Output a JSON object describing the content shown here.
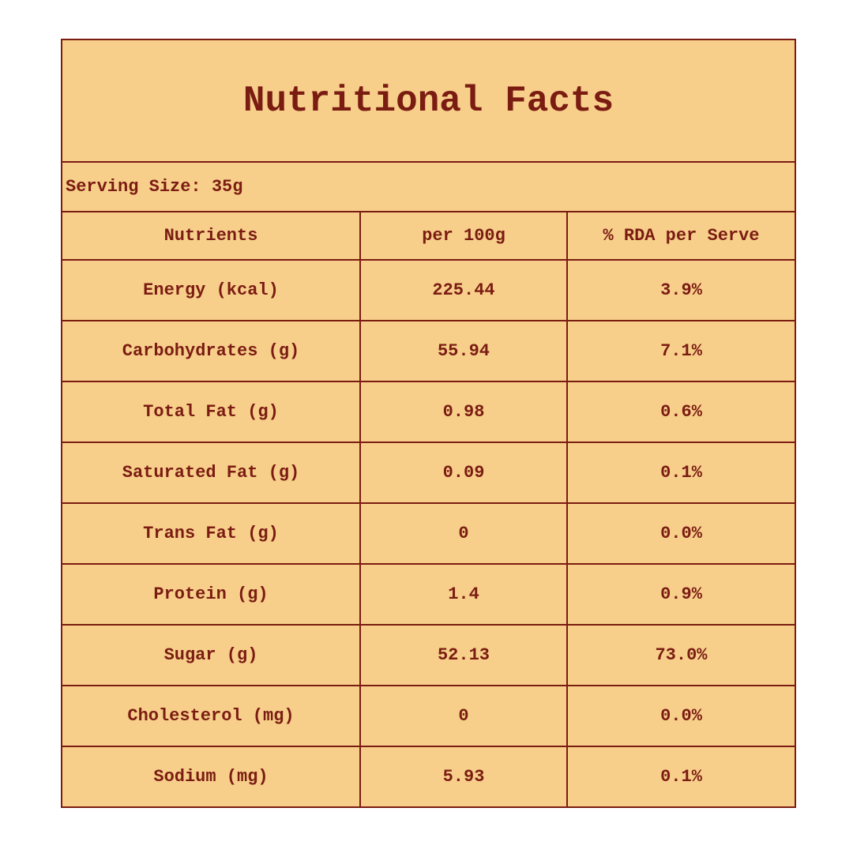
{
  "title": "Nutritional Facts",
  "serving_size": "Serving Size: 35g",
  "table": {
    "header": [
      "Nutrients",
      "per 100g",
      "% RDA per Serve"
    ],
    "rows": [
      [
        "Energy (kcal)",
        "225.44",
        "3.9%"
      ],
      [
        "Carbohydrates (g)",
        "55.94",
        "7.1%"
      ],
      [
        "Total Fat (g)",
        "0.98",
        "0.6%"
      ],
      [
        "Saturated Fat (g)",
        "0.09",
        "0.1%"
      ],
      [
        "Trans Fat (g)",
        "0",
        "0.0%"
      ],
      [
        "Protein (g)",
        "1.4",
        "0.9%"
      ],
      [
        "Sugar (g)",
        "52.13",
        "73.0%"
      ],
      [
        "Cholesterol (mg)",
        "0",
        "0.0%"
      ],
      [
        "Sodium (mg)",
        "5.93",
        "0.1%"
      ]
    ]
  }
}
